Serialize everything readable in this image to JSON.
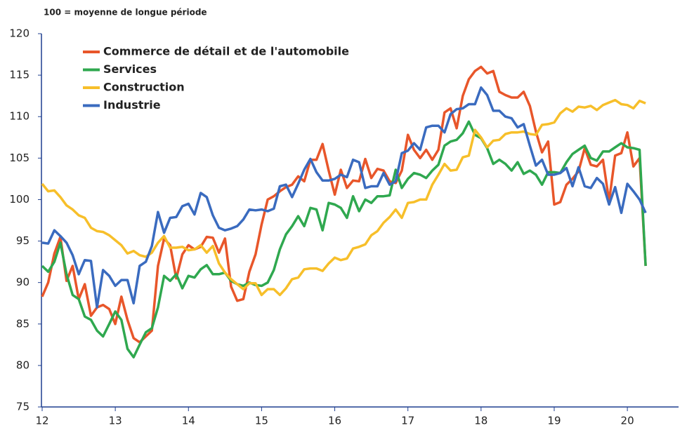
{
  "chart_data": {
    "type": "line",
    "subtitle": "100 = moyenne de longue période",
    "x": [
      12,
      12.083,
      12.167,
      12.25,
      12.333,
      12.417,
      12.5,
      12.583,
      12.667,
      12.75,
      12.833,
      12.917,
      13,
      13.083,
      13.167,
      13.25,
      13.333,
      13.417,
      13.5,
      13.583,
      13.667,
      13.75,
      13.833,
      13.917,
      14,
      14.083,
      14.167,
      14.25,
      14.333,
      14.417,
      14.5,
      14.583,
      14.667,
      14.75,
      14.833,
      14.917,
      15,
      15.083,
      15.167,
      15.25,
      15.333,
      15.417,
      15.5,
      15.583,
      15.667,
      15.75,
      15.833,
      15.917,
      16,
      16.083,
      16.167,
      16.25,
      16.333,
      16.417,
      16.5,
      16.583,
      16.667,
      16.75,
      16.833,
      16.917,
      17,
      17.083,
      17.167,
      17.25,
      17.333,
      17.417,
      17.5,
      17.583,
      17.667,
      17.75,
      17.833,
      17.917,
      18,
      18.083,
      18.167,
      18.25,
      18.333,
      18.417,
      18.5,
      18.583,
      18.667,
      18.75,
      18.833,
      18.917,
      19,
      19.083,
      19.167,
      19.25,
      19.333,
      19.417,
      19.5,
      19.583,
      19.667,
      19.75,
      19.833,
      19.917,
      20,
      20.083,
      20.167,
      20.25
    ],
    "series": [
      {
        "name": "Commerce de détail et de l'automobile",
        "color": "#e8562a",
        "values": [
          88.3,
          90,
          93.5,
          95.5,
          90.2,
          92,
          88,
          89.8,
          86,
          87,
          87.3,
          86.8,
          85,
          88.3,
          85.5,
          83.3,
          82.8,
          83.5,
          84.2,
          92,
          95.3,
          94.5,
          90.5,
          93.4,
          94.5,
          94,
          94.3,
          95.5,
          95.4,
          93.6,
          95.3,
          89.5,
          87.8,
          88,
          91.3,
          93.4,
          97,
          100,
          100.4,
          101,
          101.5,
          101.8,
          102.8,
          102.2,
          104.8,
          104.8,
          106.7,
          103.5,
          100.6,
          103.6,
          101.4,
          102.3,
          102.2,
          104.9,
          102.6,
          103.7,
          103.5,
          102.2,
          102,
          103.5,
          107.8,
          106,
          105,
          106,
          104.8,
          106,
          110.5,
          111,
          108.6,
          112.5,
          114.5,
          115.5,
          116,
          115.2,
          115.5,
          113,
          112.6,
          112.3,
          112.3,
          113,
          111.3,
          108.2,
          105.7,
          107,
          99.4,
          99.7,
          101.8,
          102.5,
          103.4,
          106.2,
          104.2,
          104,
          104.8,
          99.8,
          105.3,
          105.6,
          108.1,
          104,
          105,
          92
        ]
      },
      {
        "name": "Services",
        "color": "#2fa84f",
        "values": [
          92,
          91.3,
          92.5,
          94.8,
          91,
          88.5,
          88,
          85.9,
          85.5,
          84.2,
          83.5,
          85,
          86.5,
          85.5,
          82,
          81,
          82.5,
          84,
          84.5,
          87,
          90.8,
          90.2,
          91,
          89.3,
          90.8,
          90.6,
          91.6,
          92.1,
          91,
          91,
          91.2,
          90.2,
          89.8,
          89.6,
          90,
          89.7,
          89.6,
          90,
          91.5,
          94,
          95.8,
          96.8,
          98,
          96.8,
          99,
          98.8,
          96.3,
          99.6,
          99.4,
          99,
          97.8,
          100.4,
          98.6,
          100,
          99.6,
          100.4,
          100.4,
          100.5,
          103.6,
          101.4,
          102.5,
          103.2,
          103,
          102.6,
          103.5,
          104.2,
          106.5,
          107,
          107.2,
          108,
          109.4,
          107.8,
          107.4,
          106.2,
          104.3,
          104.8,
          104.3,
          103.5,
          104.5,
          103.1,
          103.5,
          103,
          101.8,
          103.3,
          103.3,
          103.2,
          104.5,
          105.5,
          106,
          106.5,
          105,
          104.7,
          105.8,
          105.8,
          106.3,
          106.8,
          106.3,
          106.2,
          106,
          92
        ]
      },
      {
        "name": "Construction",
        "color": "#f7bf2a",
        "values": [
          101.9,
          101,
          101.1,
          100.3,
          99.3,
          98.8,
          98.1,
          97.8,
          96.6,
          96.2,
          96.1,
          95.7,
          95.1,
          94.5,
          93.5,
          93.8,
          93.3,
          93.1,
          93.6,
          94.8,
          95.6,
          94.2,
          94.2,
          94.3,
          93.9,
          94,
          94.5,
          93.6,
          94.4,
          92.3,
          91.2,
          90.4,
          89.8,
          89.2,
          89.9,
          89.9,
          88.5,
          89.2,
          89.2,
          88.5,
          89.3,
          90.4,
          90.6,
          91.6,
          91.7,
          91.7,
          91.4,
          92.3,
          93,
          92.7,
          92.9,
          94.1,
          94.3,
          94.6,
          95.7,
          96.2,
          97.2,
          97.9,
          98.8,
          97.8,
          99.6,
          99.7,
          100,
          100,
          101.8,
          103,
          104.3,
          103.5,
          103.6,
          105.1,
          105.3,
          108.4,
          107.5,
          106.3,
          107.1,
          107.2,
          107.9,
          108.1,
          108.1,
          108.2,
          107.9,
          107.8,
          109,
          109.1,
          109.3,
          110.4,
          111,
          110.6,
          111.2,
          111.1,
          111.3,
          110.8,
          111.4,
          111.7,
          112,
          111.5,
          111.4,
          111,
          111.9,
          111.6
        ]
      },
      {
        "name": "Industrie",
        "color": "#3a6bbf",
        "values": [
          94.8,
          94.7,
          96.3,
          95.6,
          94.8,
          93.3,
          91,
          92.7,
          92.6,
          87,
          91.5,
          90.8,
          89.6,
          90.3,
          90.3,
          87.5,
          92,
          92.5,
          94.4,
          98.5,
          96,
          97.8,
          97.9,
          99.2,
          99.5,
          98.2,
          100.8,
          100.3,
          98.1,
          96.6,
          96.3,
          96.5,
          96.8,
          97.6,
          98.8,
          98.7,
          98.8,
          98.6,
          98.9,
          101.6,
          101.8,
          100.3,
          101.9,
          103.6,
          104.9,
          103.3,
          102.3,
          102.3,
          102.5,
          103,
          102.7,
          104.8,
          104.5,
          101.4,
          101.6,
          101.6,
          103.2,
          101.8,
          102.2,
          105.6,
          105.9,
          106.8,
          106,
          108.7,
          108.9,
          108.9,
          108.1,
          110.3,
          110.9,
          111,
          111.5,
          111.5,
          113.5,
          112.6,
          110.7,
          110.7,
          110,
          109.8,
          108.7,
          109.1,
          106.5,
          104.1,
          104.8,
          103,
          103,
          103.2,
          103.8,
          101.6,
          103.9,
          101.6,
          101.4,
          102.6,
          101.9,
          99.4,
          101.5,
          98.4,
          101.9,
          101,
          100,
          98.4
        ]
      }
    ],
    "xlim": [
      12,
      20.7
    ],
    "xticks": [
      12,
      13,
      14,
      15,
      16,
      17,
      18,
      19,
      20
    ],
    "ylim": [
      75,
      120
    ],
    "yticks": [
      75,
      80,
      85,
      90,
      95,
      100,
      105,
      110,
      115,
      120
    ],
    "grid": false,
    "legend": "top-left"
  }
}
